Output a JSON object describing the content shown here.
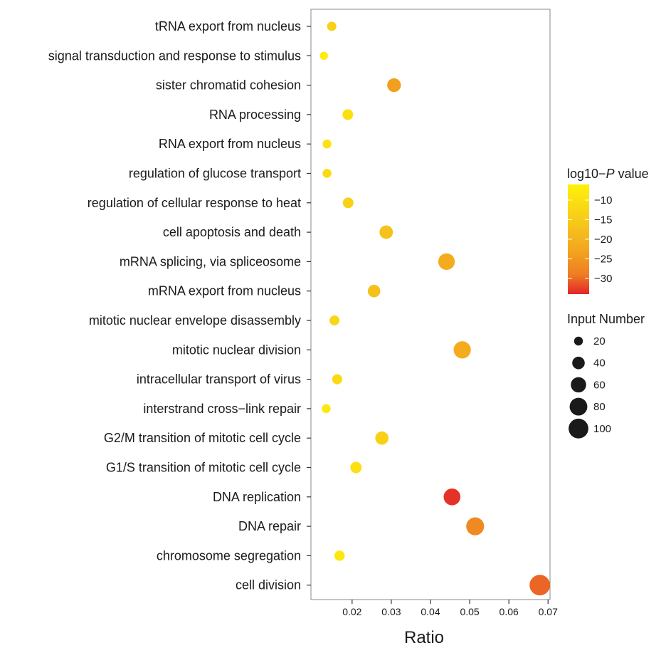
{
  "chart_data": {
    "type": "scatter",
    "xlabel": "Ratio",
    "ylabel": "",
    "xlim": [
      0.0095,
      0.0705
    ],
    "xticks": [
      0.02,
      0.03,
      0.04,
      0.05,
      0.06,
      0.07
    ],
    "grid": false,
    "categories": [
      "tRNA export from nucleus",
      "signal transduction and response to stimulus",
      "sister chromatid cohesion",
      "RNA processing",
      "RNA export from nucleus",
      "regulation of glucose transport",
      "regulation of cellular response to heat",
      "cell apoptosis and death",
      "mRNA splicing, via spliceosome",
      "mRNA export from nucleus",
      "mitotic nuclear envelope disassembly",
      "mitotic nuclear division",
      "intracellular transport of virus",
      "interstrand cross−link repair",
      "G2/M transition of mitotic cell cycle",
      "G1/S transition of mitotic cell cycle",
      "DNA replication",
      "DNA repair",
      "chromosome segregation",
      "cell division"
    ],
    "points": [
      {
        "category": "tRNA export from nucleus",
        "ratio": 0.0148,
        "log10p": -13,
        "input_number": 22
      },
      {
        "category": "signal transduction and response to stimulus",
        "ratio": 0.0128,
        "log10p": -7,
        "input_number": 17
      },
      {
        "category": "sister chromatid cohesion",
        "ratio": 0.0307,
        "log10p": -21,
        "input_number": 48
      },
      {
        "category": "RNA processing",
        "ratio": 0.0189,
        "log10p": -10,
        "input_number": 29
      },
      {
        "category": "RNA export from nucleus",
        "ratio": 0.0136,
        "log10p": -9,
        "input_number": 20
      },
      {
        "category": "regulation of glucose transport",
        "ratio": 0.0136,
        "log10p": -11,
        "input_number": 20
      },
      {
        "category": "regulation of cellular response to heat",
        "ratio": 0.019,
        "log10p": -13,
        "input_number": 29
      },
      {
        "category": "cell apoptosis and death",
        "ratio": 0.0287,
        "log10p": -16,
        "input_number": 46
      },
      {
        "category": "mRNA splicing, via spliceosome",
        "ratio": 0.0441,
        "log10p": -19,
        "input_number": 70
      },
      {
        "category": "mRNA export from nucleus",
        "ratio": 0.0256,
        "log10p": -16,
        "input_number": 40
      },
      {
        "category": "mitotic nuclear envelope disassembly",
        "ratio": 0.0155,
        "log10p": -12,
        "input_number": 25
      },
      {
        "category": "mitotic nuclear division",
        "ratio": 0.0481,
        "log10p": -19,
        "input_number": 76
      },
      {
        "category": "intracellular transport of virus",
        "ratio": 0.0162,
        "log10p": -11,
        "input_number": 26
      },
      {
        "category": "interstrand cross−link repair",
        "ratio": 0.0134,
        "log10p": -8,
        "input_number": 20
      },
      {
        "category": "G2/M transition of mitotic cell cycle",
        "ratio": 0.0276,
        "log10p": -13,
        "input_number": 45
      },
      {
        "category": "G1/S transition of mitotic cell cycle",
        "ratio": 0.021,
        "log10p": -10,
        "input_number": 33
      },
      {
        "category": "DNA replication",
        "ratio": 0.0455,
        "log10p": -33,
        "input_number": 72
      },
      {
        "category": "DNA repair",
        "ratio": 0.0514,
        "log10p": -25,
        "input_number": 82
      },
      {
        "category": "chromosome segregation",
        "ratio": 0.0168,
        "log10p": -8,
        "input_number": 27
      },
      {
        "category": "cell division",
        "ratio": 0.0679,
        "log10p": -29,
        "input_number": 108
      }
    ],
    "color_legend": {
      "title_prefix": "log10−",
      "title_italic": "P",
      "title_suffix": " value",
      "ticks": [
        -10,
        -15,
        -20,
        -25,
        -30
      ],
      "range": [
        -6,
        -34
      ],
      "colors": [
        "#fff10a",
        "#f6b71d",
        "#ee7e22",
        "#e3252a"
      ]
    },
    "size_legend": {
      "title": "Input Number",
      "values": [
        20,
        40,
        60,
        80,
        100
      ],
      "marker_color": "#1a1a1a"
    }
  }
}
